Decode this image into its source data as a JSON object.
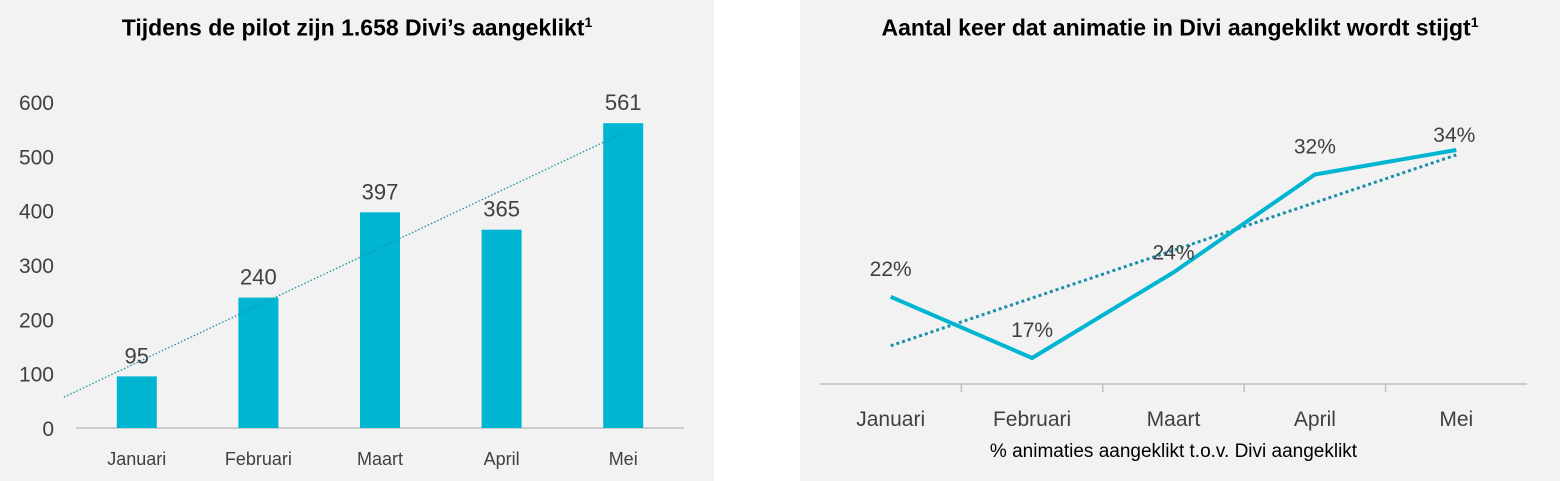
{
  "colors": {
    "bar": "#00b5d1",
    "line": "#00b5d1",
    "trend": "#1a8fa8",
    "axis": "#bfbfbf",
    "text": "#404040"
  },
  "chart_data": [
    {
      "type": "bar",
      "title": "Tijdens de pilot zijn 1.658 Divi’s aangeklikt",
      "title_sup": "1",
      "categories": [
        "Januari",
        "Februari",
        "Maart",
        "April",
        "Mei"
      ],
      "values": [
        95,
        240,
        397,
        365,
        561
      ],
      "data_labels": [
        "95",
        "240",
        "397",
        "365",
        "561"
      ],
      "ylim": [
        0,
        600
      ],
      "y_ticks": [
        0,
        100,
        200,
        300,
        400,
        500,
        600
      ],
      "trendline": "linear, dotted",
      "grid": false
    },
    {
      "type": "line",
      "title": "Aantal keer dat animatie in Divi aangeklikt wordt stijgt",
      "title_sup": "1",
      "categories": [
        "Januari",
        "Februari",
        "Maart",
        "April",
        "Mei"
      ],
      "values": [
        22,
        17,
        24,
        32,
        34
      ],
      "data_labels": [
        "22%",
        "17%",
        "24%",
        "32%",
        "34%"
      ],
      "xlabel": "% animaties aangeklikt t.o.v. Divi aangeklikt",
      "trendline": "linear, dotted",
      "grid": false
    }
  ]
}
